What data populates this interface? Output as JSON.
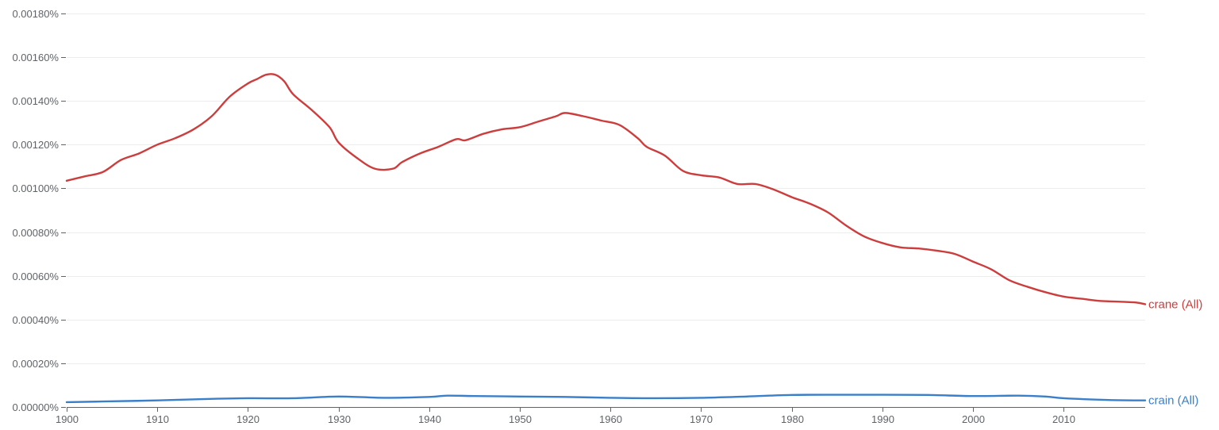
{
  "chart_data": {
    "type": "line",
    "title": "",
    "xlabel": "",
    "ylabel": "",
    "xlim": [
      1900,
      2019
    ],
    "ylim": [
      0,
      0.0018
    ],
    "grid": true,
    "legend": "right-end labels",
    "yticks": [
      {
        "value": 0.0,
        "label": "0.00000%"
      },
      {
        "value": 0.0002,
        "label": "0.00020%"
      },
      {
        "value": 0.0004,
        "label": "0.00040%"
      },
      {
        "value": 0.0006,
        "label": "0.00060%"
      },
      {
        "value": 0.0008,
        "label": "0.00080%"
      },
      {
        "value": 0.001,
        "label": "0.00100%"
      },
      {
        "value": 0.0012,
        "label": "0.00120%"
      },
      {
        "value": 0.0014,
        "label": "0.00140%"
      },
      {
        "value": 0.0016,
        "label": "0.00160%"
      },
      {
        "value": 0.0018,
        "label": "0.00180%"
      }
    ],
    "xticks": [
      {
        "value": 1900,
        "label": "1900"
      },
      {
        "value": 1910,
        "label": "1910"
      },
      {
        "value": 1920,
        "label": "1920"
      },
      {
        "value": 1930,
        "label": "1930"
      },
      {
        "value": 1940,
        "label": "1940"
      },
      {
        "value": 1950,
        "label": "1950"
      },
      {
        "value": 1960,
        "label": "1960"
      },
      {
        "value": 1970,
        "label": "1970"
      },
      {
        "value": 1980,
        "label": "1980"
      },
      {
        "value": 1990,
        "label": "1990"
      },
      {
        "value": 2000,
        "label": "2000"
      },
      {
        "value": 2010,
        "label": "2010"
      }
    ],
    "series": [
      {
        "name": "crane (All)",
        "color": "#cc3d3d",
        "points": [
          [
            1900,
            0.001035
          ],
          [
            1902,
            0.001055
          ],
          [
            1904,
            0.001075
          ],
          [
            1906,
            0.00113
          ],
          [
            1908,
            0.00116
          ],
          [
            1910,
            0.0012
          ],
          [
            1912,
            0.00123
          ],
          [
            1914,
            0.00127
          ],
          [
            1916,
            0.00133
          ],
          [
            1918,
            0.00142
          ],
          [
            1920,
            0.00148
          ],
          [
            1921,
            0.0015
          ],
          [
            1922,
            0.00152
          ],
          [
            1923,
            0.00152
          ],
          [
            1924,
            0.00149
          ],
          [
            1925,
            0.00143
          ],
          [
            1927,
            0.00136
          ],
          [
            1929,
            0.00128
          ],
          [
            1930,
            0.00121
          ],
          [
            1932,
            0.00114
          ],
          [
            1934,
            0.00109
          ],
          [
            1936,
            0.00109
          ],
          [
            1937,
            0.00112
          ],
          [
            1939,
            0.00116
          ],
          [
            1941,
            0.00119
          ],
          [
            1943,
            0.001225
          ],
          [
            1944,
            0.00122
          ],
          [
            1946,
            0.00125
          ],
          [
            1948,
            0.00127
          ],
          [
            1950,
            0.00128
          ],
          [
            1952,
            0.001305
          ],
          [
            1954,
            0.00133
          ],
          [
            1955,
            0.001345
          ],
          [
            1957,
            0.00133
          ],
          [
            1959,
            0.00131
          ],
          [
            1961,
            0.00129
          ],
          [
            1963,
            0.00123
          ],
          [
            1964,
            0.00119
          ],
          [
            1966,
            0.00115
          ],
          [
            1968,
            0.00108
          ],
          [
            1970,
            0.00106
          ],
          [
            1972,
            0.00105
          ],
          [
            1974,
            0.00102
          ],
          [
            1976,
            0.00102
          ],
          [
            1978,
            0.000995
          ],
          [
            1980,
            0.00096
          ],
          [
            1982,
            0.00093
          ],
          [
            1984,
            0.00089
          ],
          [
            1986,
            0.00083
          ],
          [
            1988,
            0.00078
          ],
          [
            1990,
            0.00075
          ],
          [
            1992,
            0.00073
          ],
          [
            1994,
            0.000725
          ],
          [
            1996,
            0.000715
          ],
          [
            1998,
            0.0007
          ],
          [
            2000,
            0.000665
          ],
          [
            2002,
            0.00063
          ],
          [
            2004,
            0.00058
          ],
          [
            2006,
            0.00055
          ],
          [
            2008,
            0.000525
          ],
          [
            2010,
            0.000505
          ],
          [
            2012,
            0.000495
          ],
          [
            2014,
            0.000485
          ],
          [
            2016,
            0.000482
          ],
          [
            2018,
            0.000478
          ],
          [
            2019,
            0.00047
          ]
        ]
      },
      {
        "name": "crain (All)",
        "color": "#3a7fca",
        "points": [
          [
            1900,
            2.2e-05
          ],
          [
            1905,
            2.6e-05
          ],
          [
            1910,
            3e-05
          ],
          [
            1915,
            3.6e-05
          ],
          [
            1920,
            4e-05
          ],
          [
            1925,
            4e-05
          ],
          [
            1930,
            4.8e-05
          ],
          [
            1935,
            4.2e-05
          ],
          [
            1940,
            4.6e-05
          ],
          [
            1942,
            5.2e-05
          ],
          [
            1945,
            5e-05
          ],
          [
            1950,
            4.8e-05
          ],
          [
            1955,
            4.6e-05
          ],
          [
            1960,
            4.2e-05
          ],
          [
            1965,
            4e-05
          ],
          [
            1970,
            4.2e-05
          ],
          [
            1975,
            4.8e-05
          ],
          [
            1980,
            5.5e-05
          ],
          [
            1985,
            5.6e-05
          ],
          [
            1990,
            5.6e-05
          ],
          [
            1995,
            5.5e-05
          ],
          [
            2000,
            5e-05
          ],
          [
            2005,
            5.2e-05
          ],
          [
            2008,
            4.8e-05
          ],
          [
            2010,
            4e-05
          ],
          [
            2015,
            3.2e-05
          ],
          [
            2019,
            3e-05
          ]
        ]
      }
    ]
  }
}
